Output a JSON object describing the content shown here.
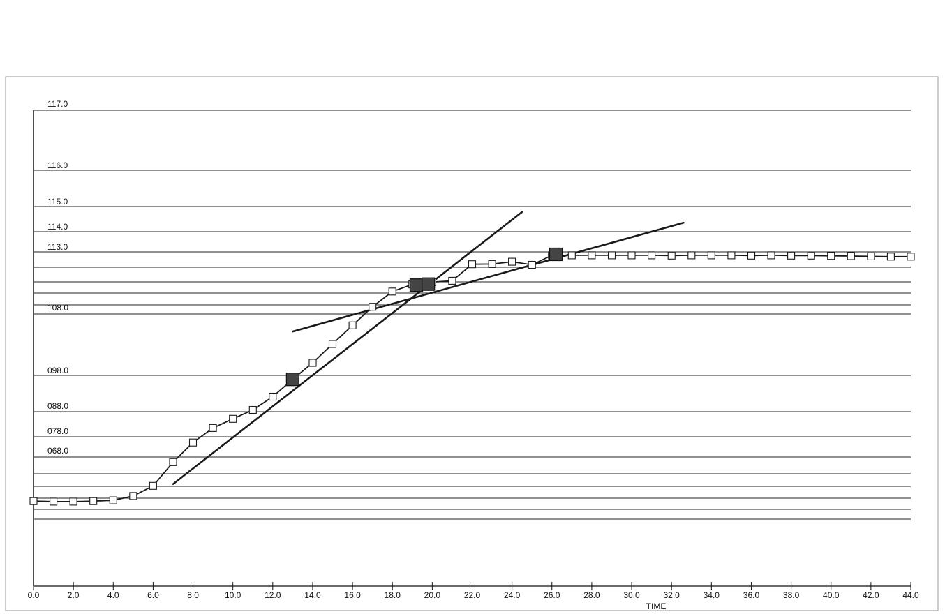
{
  "chart_data": {
    "type": "line",
    "title": "",
    "xlabel": "TIME",
    "ylabel": "",
    "x_ticks": [
      0,
      2,
      4,
      6,
      8,
      10,
      12,
      14,
      16,
      18,
      20,
      22,
      24,
      26,
      28,
      30,
      32,
      34,
      36,
      38,
      40,
      42,
      44
    ],
    "x_tick_labels": [
      "0.0",
      "2.0",
      "4.0",
      "6.0",
      "8.0",
      "10.0",
      "12.0",
      "14.0",
      "16.0",
      "18.0",
      "20.0",
      "22.0",
      "24.0",
      "26.0",
      "28.0",
      "30.0",
      "32.0",
      "34.0",
      "36.0",
      "38.0",
      "40.0",
      "42.0",
      "44.0"
    ],
    "y_tick_labels": [
      "117.0",
      "116.0",
      "115.0",
      "114.0",
      "113.0",
      "108.0",
      "098.0",
      "088.0",
      "078.0",
      "068.0"
    ],
    "grid": true,
    "series": [
      {
        "markers": "square",
        "x": [
          0,
          1,
          2,
          3,
          4,
          5,
          6,
          7,
          8,
          9,
          10,
          11,
          12,
          13,
          14,
          15,
          16,
          17,
          18,
          19,
          20,
          21,
          22,
          23,
          24,
          25,
          26,
          27,
          28,
          29,
          30,
          31,
          32,
          33,
          34,
          35,
          36,
          37,
          38,
          39,
          40,
          41,
          42,
          43,
          44
        ],
        "y": [
          57.5,
          57.3,
          57.3,
          57.5,
          57.8,
          59.5,
          63.5,
          72.8,
          80.5,
          86.2,
          89.8,
          93.3,
          98.5,
          105.3,
          111.8,
          119.2,
          126.5,
          133.8,
          139.8,
          142.6,
          143.5,
          144.0,
          150.5,
          150.6,
          151.5,
          150.3,
          154.0,
          154.0,
          154.0,
          154.0,
          154.0,
          154.0,
          153.9,
          154.0,
          154.0,
          154.0,
          153.9,
          154.0,
          153.9,
          153.9,
          153.8,
          153.7,
          153.6,
          153.5,
          153.5
        ]
      }
    ],
    "tangent_lines": [
      {
        "x": [
          7.0,
          24.5
        ],
        "y": [
          64.2,
          171.0
        ]
      },
      {
        "x": [
          13.0,
          32.6
        ],
        "y": [
          124.1,
          166.8
        ]
      }
    ],
    "highlight_points": [
      {
        "x": 13.0,
        "y": 105.3
      },
      {
        "x": 19.2,
        "y": 142.3
      },
      {
        "x": 19.8,
        "y": 142.7
      },
      {
        "x": 26.2,
        "y": 154.4
      }
    ],
    "colors": {
      "line": "#1a1a1a",
      "marker_fill": "#ffffff",
      "highlight_fill": "#444444",
      "grid": "#222222"
    }
  }
}
